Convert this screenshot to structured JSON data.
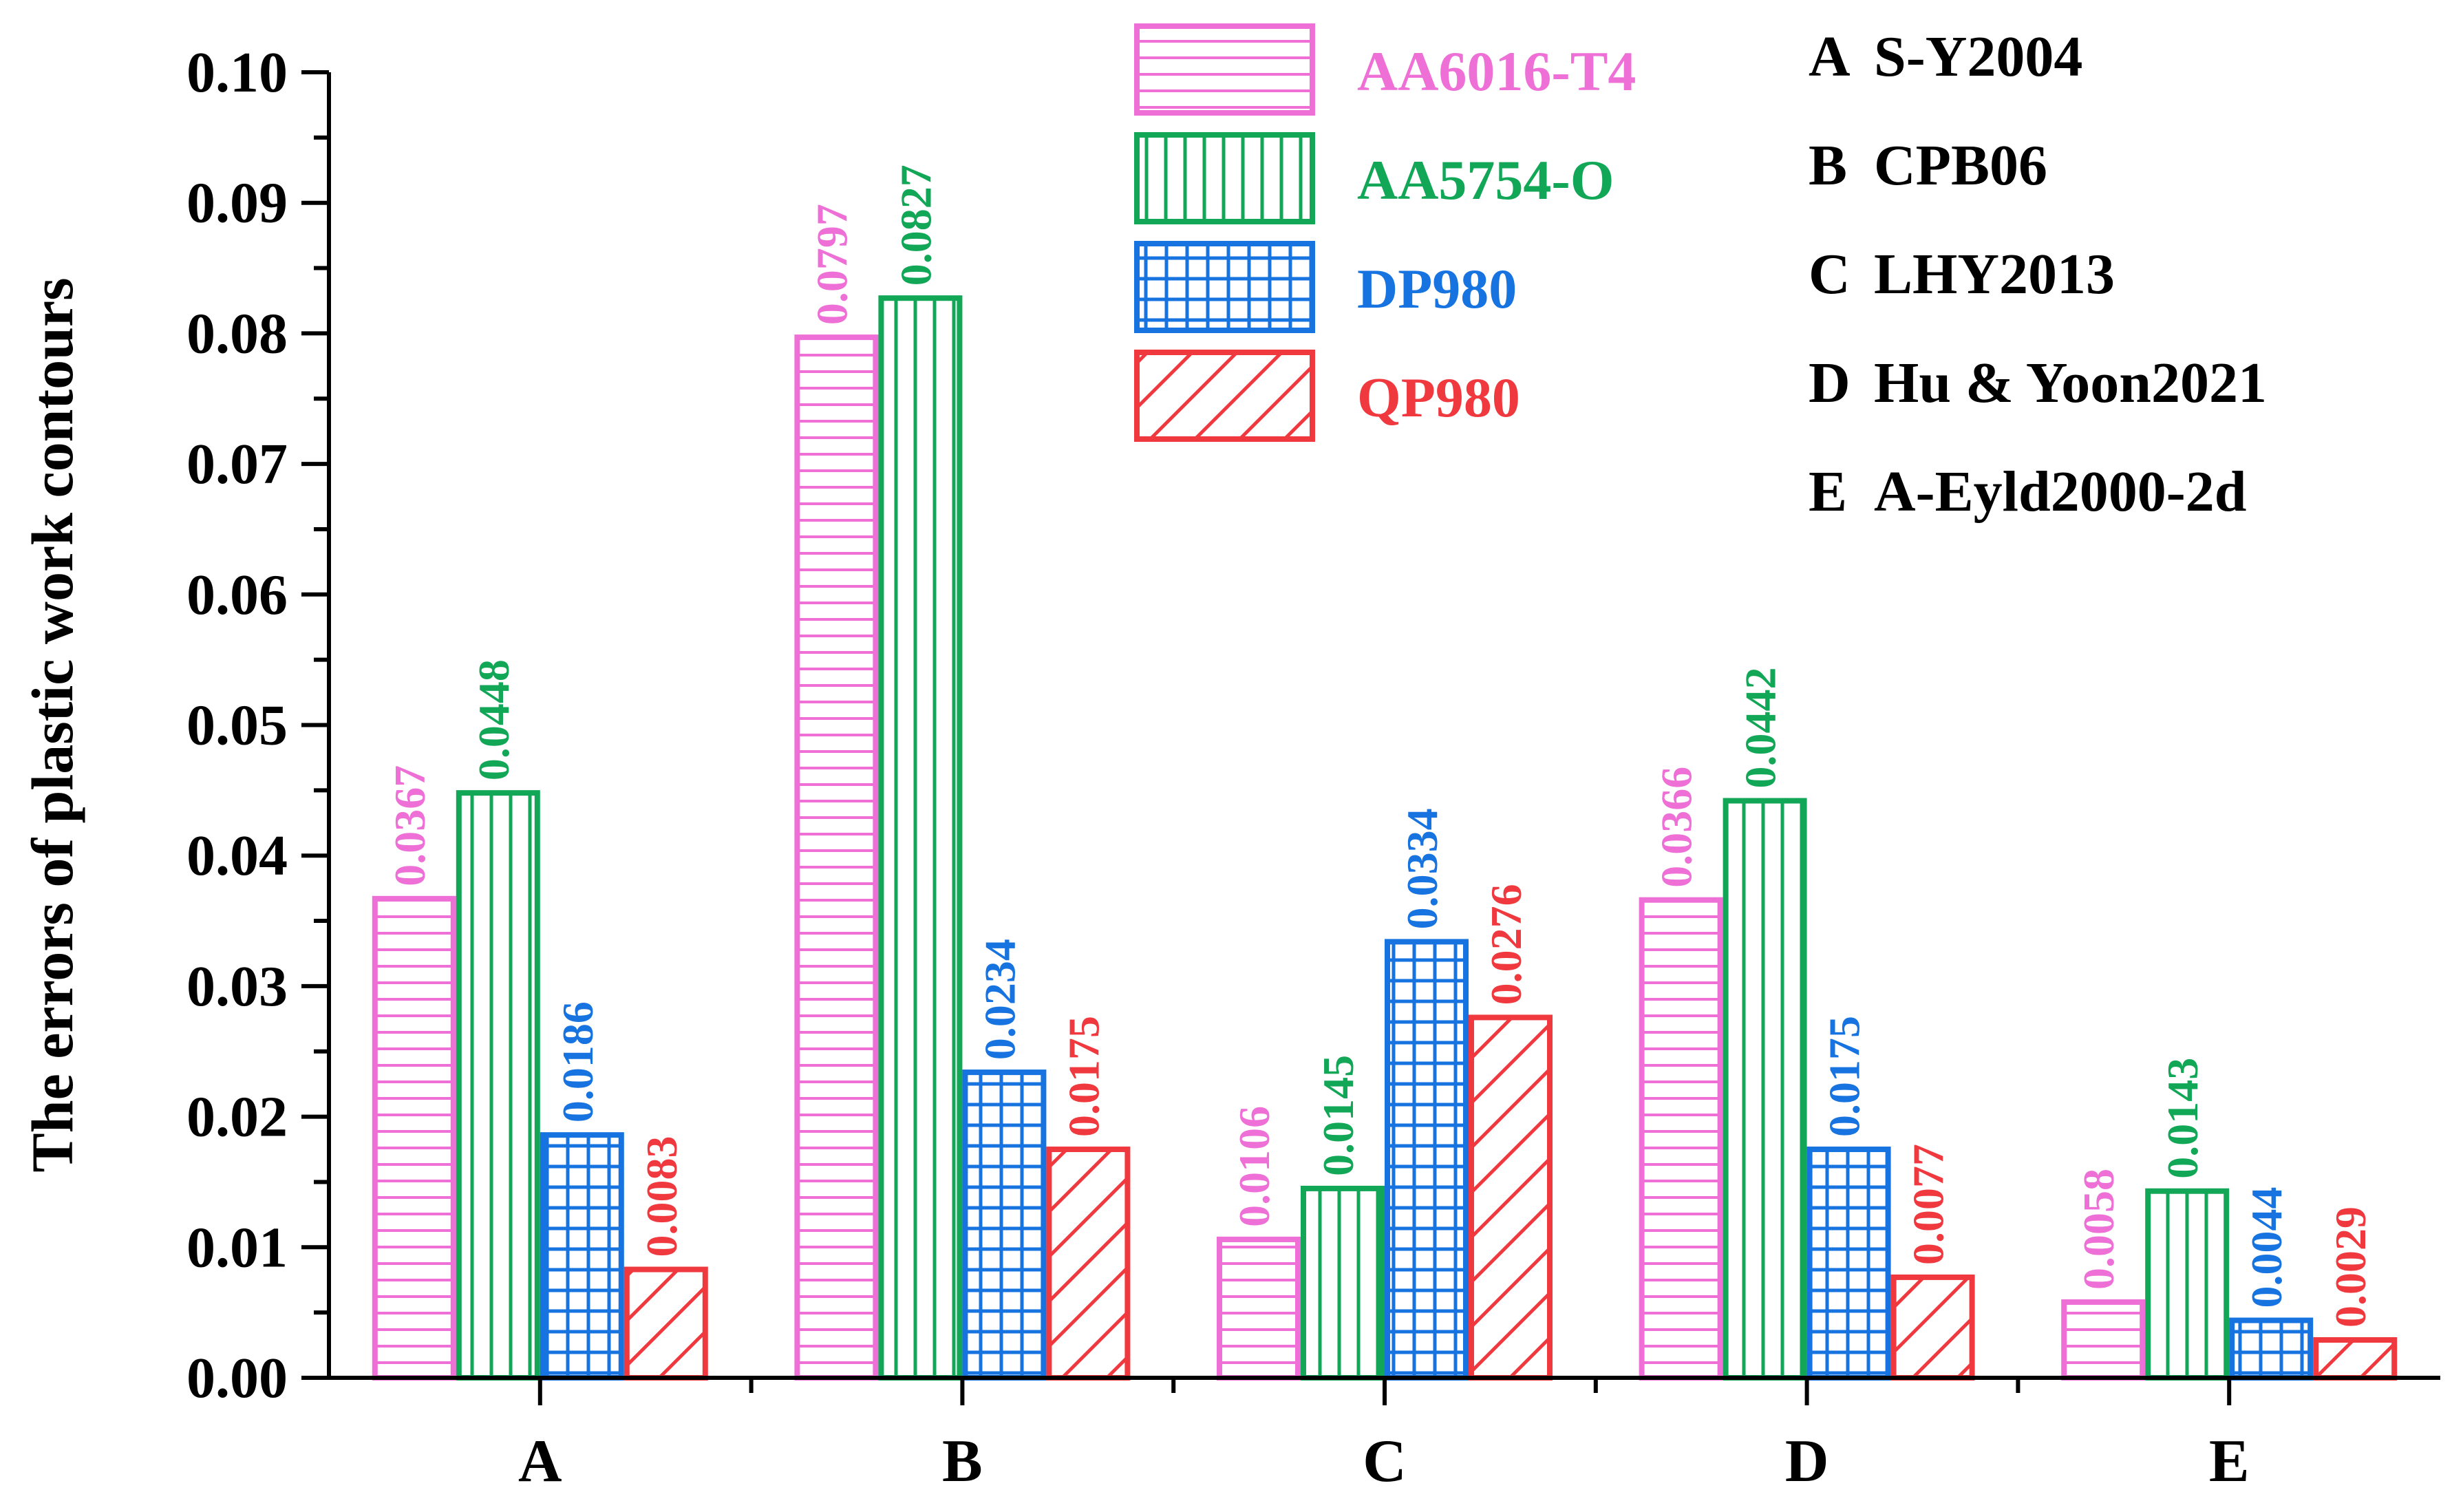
{
  "chart_data": {
    "type": "bar",
    "ylabel": "The errors of plastic work contours",
    "xlabel": "",
    "ylim": [
      0,
      0.1
    ],
    "yticks": [
      "0.00",
      "0.01",
      "0.02",
      "0.03",
      "0.04",
      "0.05",
      "0.06",
      "0.07",
      "0.08",
      "0.09",
      "0.10"
    ],
    "categories": [
      "A",
      "B",
      "C",
      "D",
      "E"
    ],
    "series": [
      {
        "name": "AA6016-T4",
        "color": "#ee6fd6",
        "pattern": "horizontal",
        "values": [
          0.0367,
          0.0797,
          0.0106,
          0.0366,
          0.0058
        ],
        "labels": [
          "0.0367",
          "0.0797",
          "0.0106",
          "0.0366",
          "0.0058"
        ]
      },
      {
        "name": "AA5754-O",
        "color": "#12a657",
        "pattern": "vertical",
        "values": [
          0.0448,
          0.0827,
          0.0145,
          0.0442,
          0.0143
        ],
        "labels": [
          "0.0448",
          "0.0827",
          "0.0145",
          "0.0442",
          "0.0143"
        ]
      },
      {
        "name": "DP980",
        "color": "#1673e0",
        "pattern": "grid",
        "values": [
          0.0186,
          0.0234,
          0.0334,
          0.0175,
          0.0044
        ],
        "labels": [
          "0.0186",
          "0.0234",
          "0.0334",
          "0.0175",
          "0.0044"
        ]
      },
      {
        "name": "QP980",
        "color": "#f0393f",
        "pattern": "diagonal",
        "values": [
          0.0083,
          0.0175,
          0.0276,
          0.0077,
          0.0029
        ],
        "labels": [
          "0.0083",
          "0.0175",
          "0.0276",
          "0.0077",
          "0.0029"
        ]
      }
    ],
    "model_key": [
      {
        "code": "A",
        "name": "S-Y2004"
      },
      {
        "code": "B",
        "name": "CPB06"
      },
      {
        "code": "C",
        "name": "LHY2013"
      },
      {
        "code": "D",
        "name": "Hu & Yoon2021"
      },
      {
        "code": "E",
        "name": "A-Eyld2000-2d"
      }
    ],
    "legend_position": "top-center",
    "grid": false
  }
}
